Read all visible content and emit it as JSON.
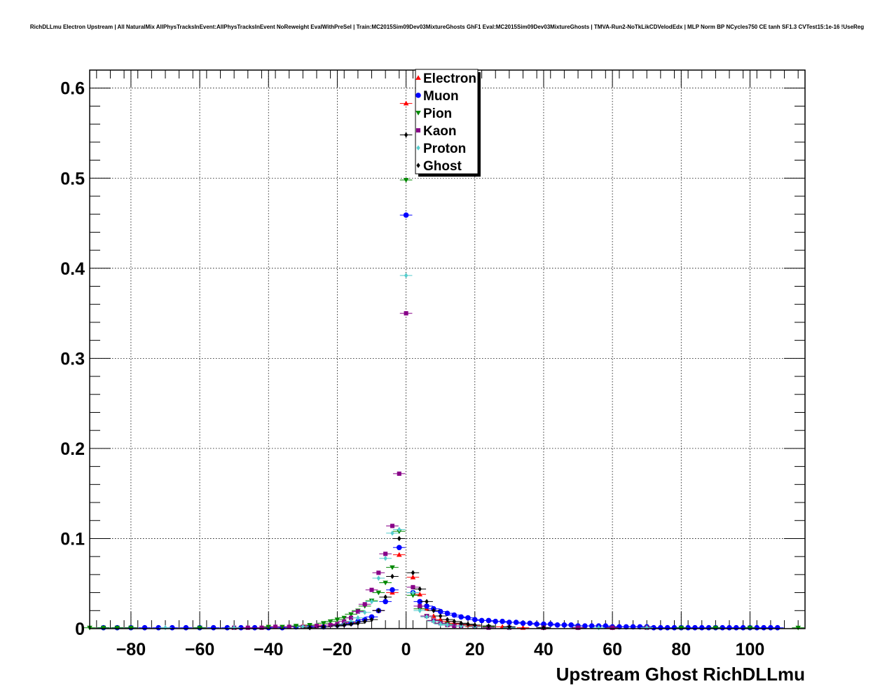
{
  "title": "RichDLLmu Electron Upstream | All NaturalMix AllPhysTracksInEvent:AllPhysTracksInEvent NoReweight EvalWithPreSel | Train:MC2015Sim09Dev03MixtureGhosts GhF1 Eval:MC2015Sim09Dev03MixtureGhosts | TMVA-Run2-NoTkLikCDVelodEdx | MLP Norm BP NCycles750 CE tanh SF1.3 CVTest15:1e-16 !UseReg",
  "chart_data": {
    "type": "scatter",
    "title": "RichDLLmu Electron Upstream | All NaturalMix AllPhysTracksInEvent:AllPhysTracksInEvent NoReweight EvalWithPreSel | Train:MC2015Sim09Dev03MixtureGhosts GhF1 Eval:MC2015Sim09Dev03MixtureGhosts | TMVA-Run2-NoTkLikCDVelodEdx | MLP Norm BP NCycles750 CE tanh SF1.3 CVTest15:1e-16 !UseReg",
    "xlabel": "Upstream Ghost RichDLLmu",
    "ylabel": "",
    "xlim": [
      -92,
      116
    ],
    "ylim": [
      0,
      0.62
    ],
    "grid": true,
    "legend_position": "top-center",
    "x_ticks": [
      -80,
      -60,
      -40,
      -20,
      0,
      20,
      40,
      60,
      80,
      100
    ],
    "x_tick_labels": [
      "−80",
      "−60",
      "−40",
      "−20",
      "0",
      "20",
      "40",
      "60",
      "80",
      "100"
    ],
    "y_ticks": [
      0,
      0.1,
      0.2,
      0.3,
      0.4,
      0.5,
      0.6
    ],
    "y_tick_labels": [
      "0",
      "0.1",
      "0.2",
      "0.3",
      "0.4",
      "0.5",
      "0.6"
    ],
    "series": [
      {
        "name": "Electron",
        "color": "#ff0000",
        "marker": "triangle-up",
        "x": [
          -50,
          -40,
          -30,
          -24,
          -20,
          -16,
          -12,
          -8,
          -4,
          -2,
          0,
          2,
          4,
          6,
          8,
          10,
          12,
          14,
          16,
          18,
          20,
          24,
          28,
          34,
          40,
          50,
          60
        ],
        "y": [
          0.001,
          0.002,
          0.003,
          0.004,
          0.005,
          0.007,
          0.01,
          0.02,
          0.04,
          0.082,
          0.583,
          0.057,
          0.038,
          0.022,
          0.014,
          0.01,
          0.008,
          0.006,
          0.005,
          0.004,
          0.003,
          0.002,
          0.002,
          0.001,
          0.001,
          0.001,
          0.001
        ]
      },
      {
        "name": "Muon",
        "color": "#0000ff",
        "marker": "circle",
        "x": [
          -88,
          -84,
          -80,
          -76,
          -72,
          -68,
          -64,
          -60,
          -56,
          -52,
          -48,
          -44,
          -40,
          -36,
          -32,
          -28,
          -24,
          -20,
          -18,
          -16,
          -14,
          -12,
          -10,
          -8,
          -6,
          -4,
          -2,
          0,
          2,
          4,
          6,
          8,
          10,
          12,
          14,
          16,
          18,
          20,
          22,
          24,
          26,
          28,
          30,
          32,
          34,
          36,
          38,
          40,
          42,
          44,
          46,
          48,
          50,
          52,
          54,
          56,
          58,
          60,
          62,
          64,
          66,
          68,
          70,
          72,
          74,
          76,
          78,
          80,
          82,
          84,
          86,
          88,
          90,
          92,
          94,
          96,
          98,
          100,
          102,
          104,
          106,
          108
        ],
        "y": [
          0.001,
          0.001,
          0.001,
          0.001,
          0.001,
          0.001,
          0.001,
          0.001,
          0.001,
          0.001,
          0.001,
          0.001,
          0.001,
          0.001,
          0.002,
          0.002,
          0.002,
          0.004,
          0.005,
          0.006,
          0.008,
          0.01,
          0.013,
          0.02,
          0.03,
          0.043,
          0.09,
          0.459,
          0.04,
          0.03,
          0.025,
          0.022,
          0.019,
          0.017,
          0.015,
          0.013,
          0.012,
          0.01,
          0.009,
          0.009,
          0.008,
          0.008,
          0.007,
          0.007,
          0.006,
          0.006,
          0.005,
          0.005,
          0.005,
          0.004,
          0.004,
          0.004,
          0.003,
          0.003,
          0.003,
          0.003,
          0.003,
          0.002,
          0.002,
          0.002,
          0.002,
          0.002,
          0.002,
          0.001,
          0.001,
          0.001,
          0.001,
          0.001,
          0.001,
          0.001,
          0.001,
          0.001,
          0.001,
          0.001,
          0.001,
          0.001,
          0.001,
          0.001,
          0.001,
          0.001,
          0.001,
          0.001
        ]
      },
      {
        "name": "Pion",
        "color": "#008800",
        "marker": "triangle-down",
        "x": [
          -92,
          -88,
          -84,
          -80,
          -60,
          -40,
          -36,
          -32,
          -28,
          -24,
          -22,
          -20,
          -18,
          -16,
          -14,
          -12,
          -10,
          -8,
          -6,
          -4,
          -2,
          0,
          2,
          4,
          6,
          8,
          10,
          12,
          16,
          20,
          24,
          30,
          40,
          50,
          60,
          70,
          80,
          90,
          100,
          114
        ],
        "y": [
          0.001,
          0.001,
          0.001,
          0.001,
          0.001,
          0.002,
          0.002,
          0.003,
          0.004,
          0.006,
          0.008,
          0.01,
          0.012,
          0.016,
          0.02,
          0.025,
          0.031,
          0.04,
          0.051,
          0.068,
          0.108,
          0.498,
          0.037,
          0.022,
          0.014,
          0.009,
          0.006,
          0.005,
          0.003,
          0.002,
          0.002,
          0.001,
          0.001,
          0.001,
          0.001,
          0.001,
          0.001,
          0.001,
          0.001,
          0.001
        ]
      },
      {
        "name": "Kaon",
        "color": "#880088",
        "marker": "square",
        "x": [
          -50,
          -46,
          -42,
          -38,
          -34,
          -30,
          -26,
          -22,
          -20,
          -18,
          -16,
          -14,
          -12,
          -10,
          -8,
          -6,
          -4,
          -2,
          0,
          2,
          4,
          6,
          8,
          10,
          12,
          14,
          16,
          20,
          24,
          30,
          40,
          50,
          60,
          70
        ],
        "y": [
          0.001,
          0.001,
          0.001,
          0.002,
          0.002,
          0.002,
          0.003,
          0.004,
          0.005,
          0.008,
          0.012,
          0.019,
          0.027,
          0.043,
          0.062,
          0.083,
          0.114,
          0.172,
          0.35,
          0.046,
          0.025,
          0.014,
          0.009,
          0.006,
          0.004,
          0.003,
          0.003,
          0.002,
          0.001,
          0.001,
          0.001,
          0.001,
          0.001,
          0.001
        ]
      },
      {
        "name": "Proton",
        "color": "#55cccc",
        "marker": "diamond",
        "x": [
          -70,
          -50,
          -30,
          -20,
          -18,
          -16,
          -14,
          -12,
          -10,
          -8,
          -6,
          -4,
          -2,
          0,
          2,
          4,
          6,
          8,
          10,
          12,
          16,
          20,
          30,
          40,
          56,
          70
        ],
        "y": [
          0.001,
          0.001,
          0.002,
          0.003,
          0.005,
          0.008,
          0.012,
          0.018,
          0.03,
          0.056,
          0.078,
          0.106,
          0.11,
          0.392,
          0.04,
          0.02,
          0.013,
          0.008,
          0.005,
          0.004,
          0.003,
          0.002,
          0.001,
          0.001,
          0.001,
          0.001
        ]
      },
      {
        "name": "Ghost",
        "color": "#000000",
        "marker": "diamond",
        "x": [
          -28,
          -24,
          -20,
          -18,
          -16,
          -14,
          -12,
          -10,
          -8,
          -6,
          -4,
          -2,
          0,
          2,
          4,
          6,
          8,
          10,
          12,
          14,
          16,
          18,
          20,
          24,
          30,
          40
        ],
        "y": [
          0.001,
          0.002,
          0.003,
          0.004,
          0.005,
          0.006,
          0.008,
          0.01,
          0.02,
          0.035,
          0.058,
          0.1,
          0.548,
          0.062,
          0.044,
          0.03,
          0.02,
          0.014,
          0.01,
          0.008,
          0.006,
          0.005,
          0.004,
          0.003,
          0.002,
          0.001
        ]
      }
    ]
  }
}
